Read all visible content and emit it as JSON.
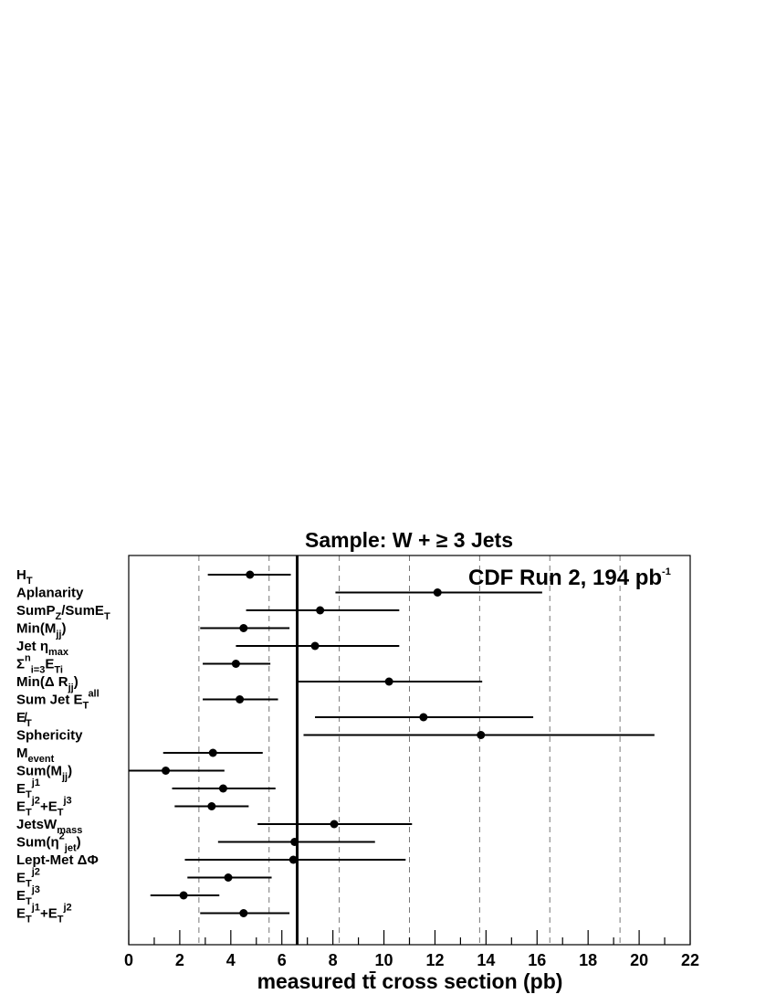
{
  "chart_data": {
    "type": "scatter",
    "title": "Sample: W + ≥ 3 Jets",
    "annotation": {
      "text": "CDF Run 2, 194 pb",
      "sup": "-1"
    },
    "xlabel": "measured tt̄ cross section (pb)",
    "xlim": [
      0,
      22
    ],
    "x_ticks": [
      0,
      2,
      4,
      6,
      8,
      10,
      12,
      14,
      16,
      18,
      20,
      22
    ],
    "reference_line": 6.6,
    "dashed_lines": [
      2.75,
      5.5,
      8.25,
      11.0,
      13.75,
      16.5,
      19.25
    ],
    "categories": [
      {
        "label": [
          [
            "H",
            ""
          ],
          [
            "T",
            "sub"
          ]
        ],
        "value": 4.75,
        "err_low": 3.1,
        "err_high": 6.35
      },
      {
        "label": [
          [
            "Aplanarity",
            ""
          ]
        ],
        "value": 12.1,
        "err_low": 8.1,
        "err_high": 16.2
      },
      {
        "label": [
          [
            "SumP",
            ""
          ],
          [
            "Z",
            "sub"
          ],
          [
            "/SumE",
            ""
          ],
          [
            "T",
            "sub"
          ]
        ],
        "value": 7.5,
        "err_low": 4.6,
        "err_high": 10.6
      },
      {
        "label": [
          [
            "Min(M",
            ""
          ],
          [
            "jj",
            "sub"
          ],
          [
            ")",
            ""
          ]
        ],
        "value": 4.5,
        "err_low": 2.8,
        "err_high": 6.3
      },
      {
        "label": [
          [
            "Jet η",
            ""
          ],
          [
            "max",
            "sub"
          ]
        ],
        "value": 7.3,
        "err_low": 4.2,
        "err_high": 10.6
      },
      {
        "label": [
          [
            "Σ",
            ""
          ],
          [
            "n",
            "sup"
          ],
          [
            "i=3",
            "sub"
          ],
          [
            "E",
            ""
          ],
          [
            "Ti",
            "sub"
          ]
        ],
        "value": 4.2,
        "err_low": 2.9,
        "err_high": 5.55
      },
      {
        "label": [
          [
            "Min(Δ R",
            ""
          ],
          [
            "jj",
            "sub"
          ],
          [
            ")",
            ""
          ]
        ],
        "value": 10.2,
        "err_low": 6.6,
        "err_high": 13.85
      },
      {
        "label": [
          [
            "Sum Jet E",
            ""
          ],
          [
            "T",
            "sub"
          ],
          [
            "all",
            "sup"
          ]
        ],
        "value": 4.35,
        "err_low": 2.9,
        "err_high": 5.85
      },
      {
        "label": [
          [
            "E̸",
            ""
          ],
          [
            "T",
            "sub"
          ]
        ],
        "value": 11.55,
        "err_low": 7.3,
        "err_high": 15.85
      },
      {
        "label": [
          [
            "Sphericity",
            ""
          ]
        ],
        "value": 13.8,
        "err_low": 6.85,
        "err_high": 20.6
      },
      {
        "label": [
          [
            "M",
            ""
          ],
          [
            "event",
            "sub"
          ]
        ],
        "value": 3.3,
        "err_low": 1.35,
        "err_high": 5.25
      },
      {
        "label": [
          [
            "Sum(M",
            ""
          ],
          [
            "jj",
            "sub"
          ],
          [
            ")",
            ""
          ]
        ],
        "value": 1.45,
        "err_low": 0.0,
        "err_high": 3.75
      },
      {
        "label": [
          [
            "E",
            ""
          ],
          [
            "T",
            "sub"
          ],
          [
            "j1",
            "sup"
          ]
        ],
        "value": 3.7,
        "err_low": 1.7,
        "err_high": 5.75
      },
      {
        "label": [
          [
            "E",
            ""
          ],
          [
            "T",
            "sub"
          ],
          [
            "j2",
            "sup"
          ],
          [
            "+E",
            ""
          ],
          [
            "T",
            "sub"
          ],
          [
            "j3",
            "sup"
          ]
        ],
        "value": 3.25,
        "err_low": 1.8,
        "err_high": 4.7
      },
      {
        "label": [
          [
            "JetsW",
            ""
          ],
          [
            "mass",
            "sub"
          ]
        ],
        "value": 8.05,
        "err_low": 5.05,
        "err_high": 11.1
      },
      {
        "label": [
          [
            "Sum(η",
            ""
          ],
          [
            "2",
            "sup"
          ],
          [
            "jet",
            "sub"
          ],
          [
            ")",
            ""
          ]
        ],
        "value": 6.5,
        "err_low": 3.5,
        "err_high": 9.65
      },
      {
        "label": [
          [
            "Lept-Met ΔΦ",
            ""
          ]
        ],
        "value": 6.45,
        "err_low": 2.2,
        "err_high": 10.85
      },
      {
        "label": [
          [
            "E",
            ""
          ],
          [
            "T",
            "sub"
          ],
          [
            "j2",
            "sup"
          ]
        ],
        "value": 3.9,
        "err_low": 2.3,
        "err_high": 5.6
      },
      {
        "label": [
          [
            "E",
            ""
          ],
          [
            "T",
            "sub"
          ],
          [
            "j3",
            "sup"
          ]
        ],
        "value": 2.15,
        "err_low": 0.85,
        "err_high": 3.55
      },
      {
        "label": [
          [
            "E",
            ""
          ],
          [
            "T",
            "sub"
          ],
          [
            "j1",
            "sup"
          ],
          [
            "+E",
            ""
          ],
          [
            "T",
            "sub"
          ],
          [
            "j2",
            "sup"
          ]
        ],
        "value": 4.5,
        "err_low": 2.8,
        "err_high": 6.3
      }
    ],
    "grid": false,
    "legend": "none"
  }
}
